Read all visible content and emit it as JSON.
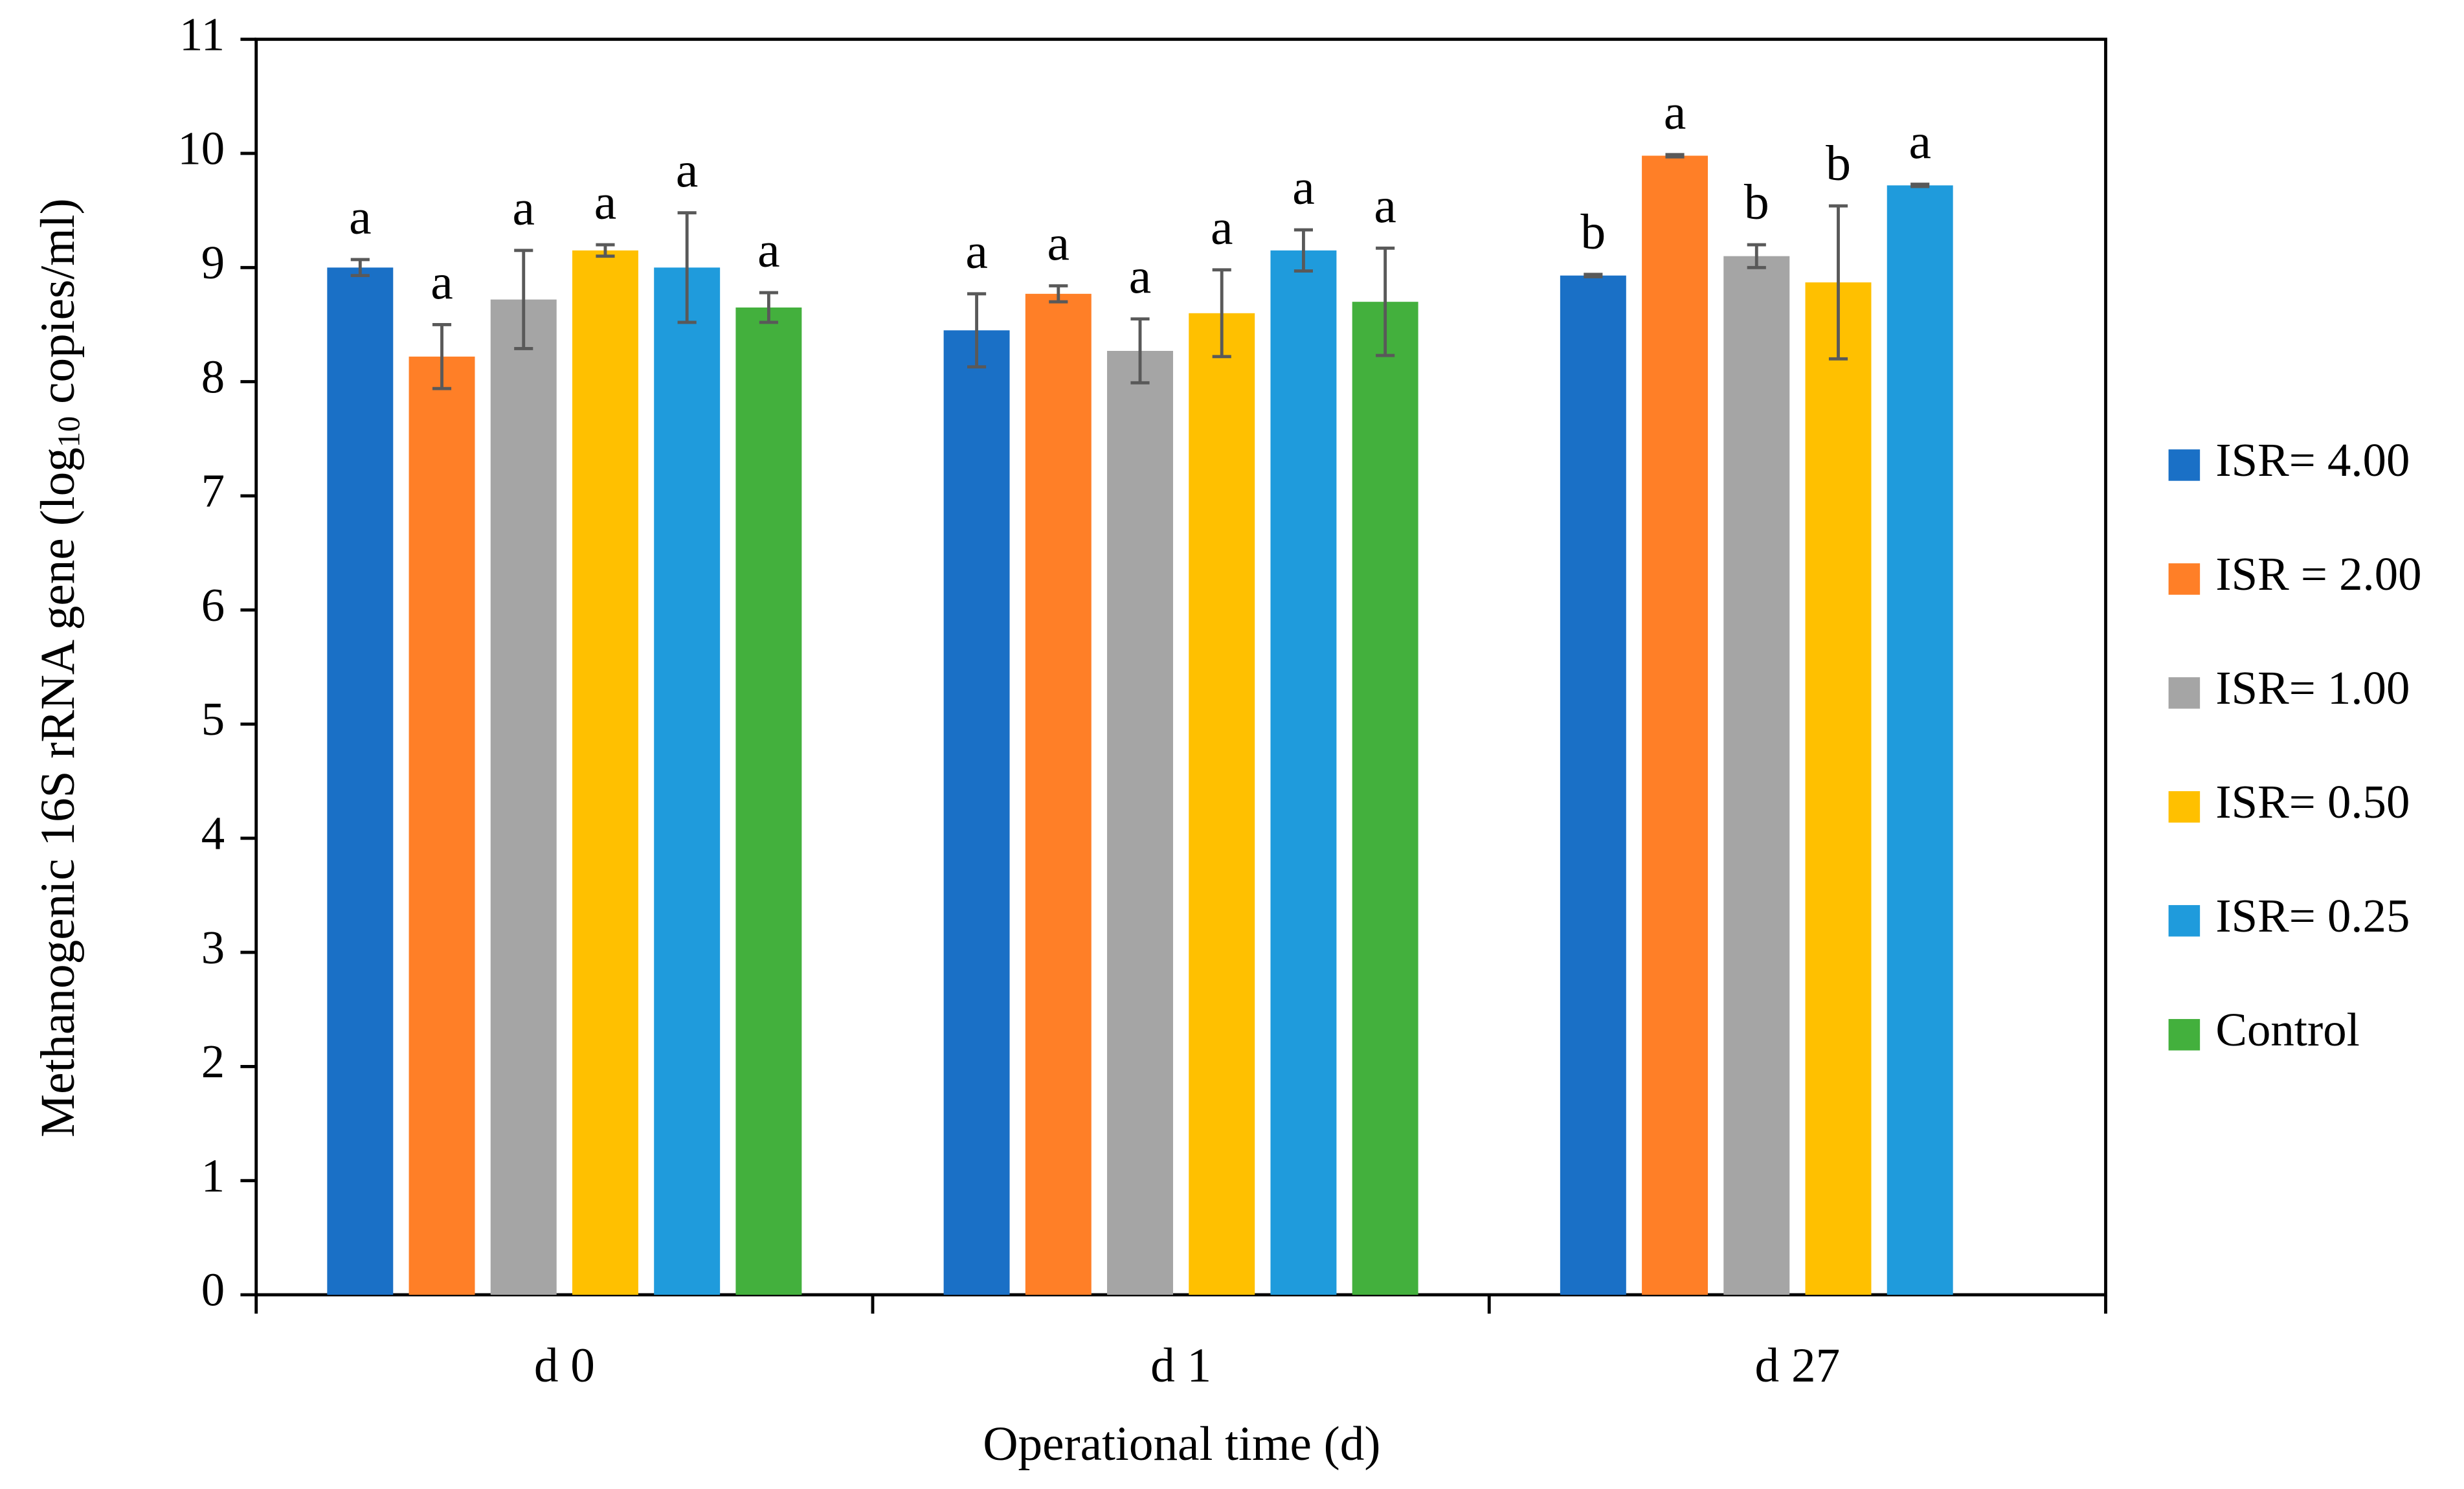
{
  "chart_data": {
    "type": "bar",
    "ylabel": {
      "before": "Methanogenic 16S rRNA  gene (log",
      "sub": "10",
      "after": " copies/ml)"
    },
    "xlabel": "Operational time (d)",
    "categories": [
      "d 0",
      "d 1",
      "d 27"
    ],
    "series": [
      {
        "name": "ISR= 4.00",
        "color": "#1a70c6",
        "values": [
          9.0,
          8.45,
          8.93
        ],
        "errors": [
          0.07,
          0.32,
          0.01
        ],
        "letters": [
          "a",
          "a",
          "b"
        ]
      },
      {
        "name": "ISR = 2.00",
        "color": "#ff7f27",
        "values": [
          8.22,
          8.77,
          9.98
        ],
        "errors": [
          0.28,
          0.07,
          0.01
        ],
        "letters": [
          "a",
          "a",
          "a"
        ]
      },
      {
        "name": "ISR= 1.00",
        "color": "#a5a5a5",
        "values": [
          8.72,
          8.27,
          9.1
        ],
        "errors": [
          0.43,
          0.28,
          0.1
        ],
        "letters": [
          "a",
          "a",
          "b"
        ]
      },
      {
        "name": "ISR= 0.50",
        "color": "#ffc000",
        "values": [
          9.15,
          8.6,
          8.87
        ],
        "errors": [
          0.05,
          0.38,
          0.67
        ],
        "letters": [
          "a",
          "a",
          "b"
        ]
      },
      {
        "name": "ISR= 0.25",
        "color": "#1f9bdc",
        "values": [
          9.0,
          9.15,
          9.72
        ],
        "errors": [
          0.48,
          0.18,
          0.01
        ],
        "letters": [
          "a",
          "a",
          "a"
        ]
      },
      {
        "name": "Control",
        "color": "#43b03d",
        "values": [
          8.65,
          8.7,
          null
        ],
        "errors": [
          0.13,
          0.47,
          null
        ],
        "letters": [
          "a",
          "a",
          null
        ]
      }
    ],
    "ylim": [
      0,
      11
    ],
    "yticks": [
      0,
      1,
      2,
      3,
      4,
      5,
      6,
      7,
      8,
      9,
      10,
      11
    ],
    "legend": "right"
  }
}
